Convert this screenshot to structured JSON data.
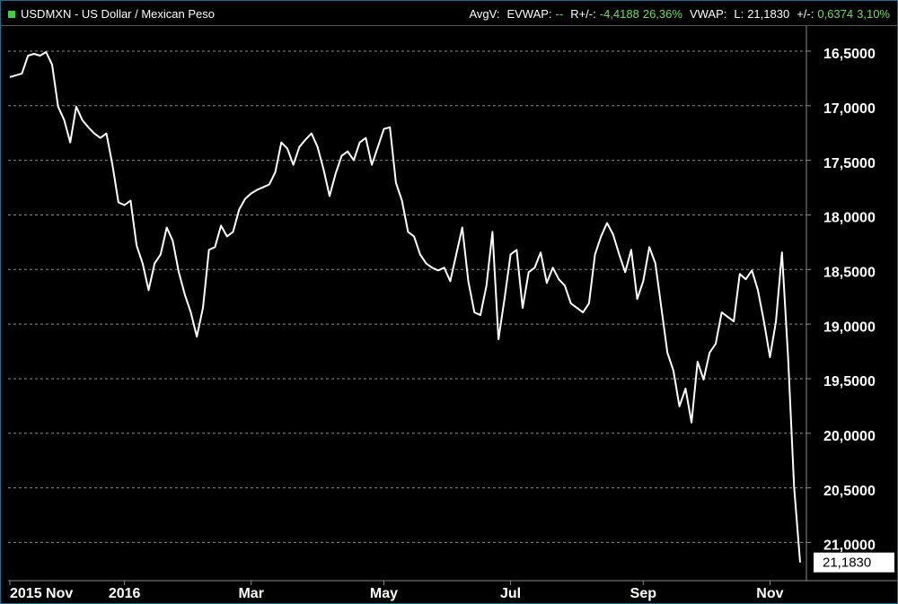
{
  "chart_data": {
    "type": "line",
    "title": "USDMXN - US Dollar / Mexican Peso",
    "stats": [
      {
        "label": "AvgV:"
      },
      {
        "label": "EVWAP:",
        "values": [
          "--"
        ]
      },
      {
        "label": "R+/-:",
        "values": [
          "-4,4188",
          "26,36%"
        ]
      },
      {
        "label": "VWAP:"
      },
      {
        "label": "L:",
        "values": [
          "21,1830"
        ]
      },
      {
        "label": "+/-:",
        "values": [
          "0,6374",
          "3,10%"
        ]
      }
    ],
    "color": "#ffffff",
    "grid": true,
    "invert_y": true,
    "ylim": [
      16.27,
      21.35
    ],
    "yticks": [
      {
        "value": 16.5,
        "label": "16,5000"
      },
      {
        "value": 17,
        "label": "17,0000"
      },
      {
        "value": 17.5,
        "label": "17,5000"
      },
      {
        "value": 18,
        "label": "18,0000"
      },
      {
        "value": 18.5,
        "label": "18,5000"
      },
      {
        "value": 19,
        "label": "19,0000"
      },
      {
        "value": 19.5,
        "label": "19,5000"
      },
      {
        "value": 20,
        "label": "20,0000"
      },
      {
        "value": 20.5,
        "label": "20,5000"
      },
      {
        "value": 21,
        "label": "21,0000"
      }
    ],
    "xlim": [
      0,
      131
    ],
    "xticks": [
      {
        "value": 0,
        "label": "2015 Nov"
      },
      {
        "value": 19,
        "label": "2016"
      },
      {
        "value": 40,
        "label": "Mar"
      },
      {
        "value": 62,
        "label": "May"
      },
      {
        "value": 83,
        "label": "Jul"
      },
      {
        "value": 105,
        "label": "Sep"
      },
      {
        "value": 126,
        "label": "Nov"
      }
    ],
    "last": {
      "value": 21.183,
      "label": "21,1830"
    },
    "values": [
      16.738,
      16.721,
      16.705,
      16.541,
      16.525,
      16.541,
      16.508,
      16.623,
      17.008,
      17.131,
      17.336,
      17.008,
      17.131,
      17.197,
      17.254,
      17.295,
      17.254,
      17.541,
      17.885,
      17.91,
      17.869,
      18.279,
      18.443,
      18.689,
      18.443,
      18.361,
      18.115,
      18.238,
      18.525,
      18.73,
      18.893,
      19.115,
      18.852,
      18.32,
      18.295,
      18.098,
      18.197,
      18.156,
      17.951,
      17.852,
      17.803,
      17.77,
      17.746,
      17.721,
      17.607,
      17.336,
      17.393,
      17.541,
      17.377,
      17.311,
      17.254,
      17.377,
      17.582,
      17.828,
      17.623,
      17.459,
      17.418,
      17.5,
      17.336,
      17.295,
      17.541,
      17.377,
      17.213,
      17.197,
      17.705,
      17.869,
      18.156,
      18.197,
      18.361,
      18.443,
      18.484,
      18.508,
      18.484,
      18.607,
      18.361,
      18.115,
      18.607,
      18.893,
      18.918,
      18.648,
      18.156,
      19.139,
      18.77,
      18.361,
      18.32,
      18.852,
      18.525,
      18.484,
      18.344,
      18.623,
      18.484,
      18.59,
      18.648,
      18.811,
      18.852,
      18.893,
      18.811,
      18.361,
      18.197,
      18.074,
      18.18,
      18.361,
      18.525,
      18.32,
      18.77,
      18.607,
      18.295,
      18.443,
      18.852,
      19.262,
      19.426,
      19.754,
      19.59,
      19.902,
      19.344,
      19.508,
      19.262,
      19.18,
      18.893,
      18.934,
      18.975,
      18.541,
      18.59,
      18.508,
      18.689,
      18.975,
      19.303,
      18.975,
      18.344,
      19.303,
      20.492,
      21.183
    ]
  }
}
